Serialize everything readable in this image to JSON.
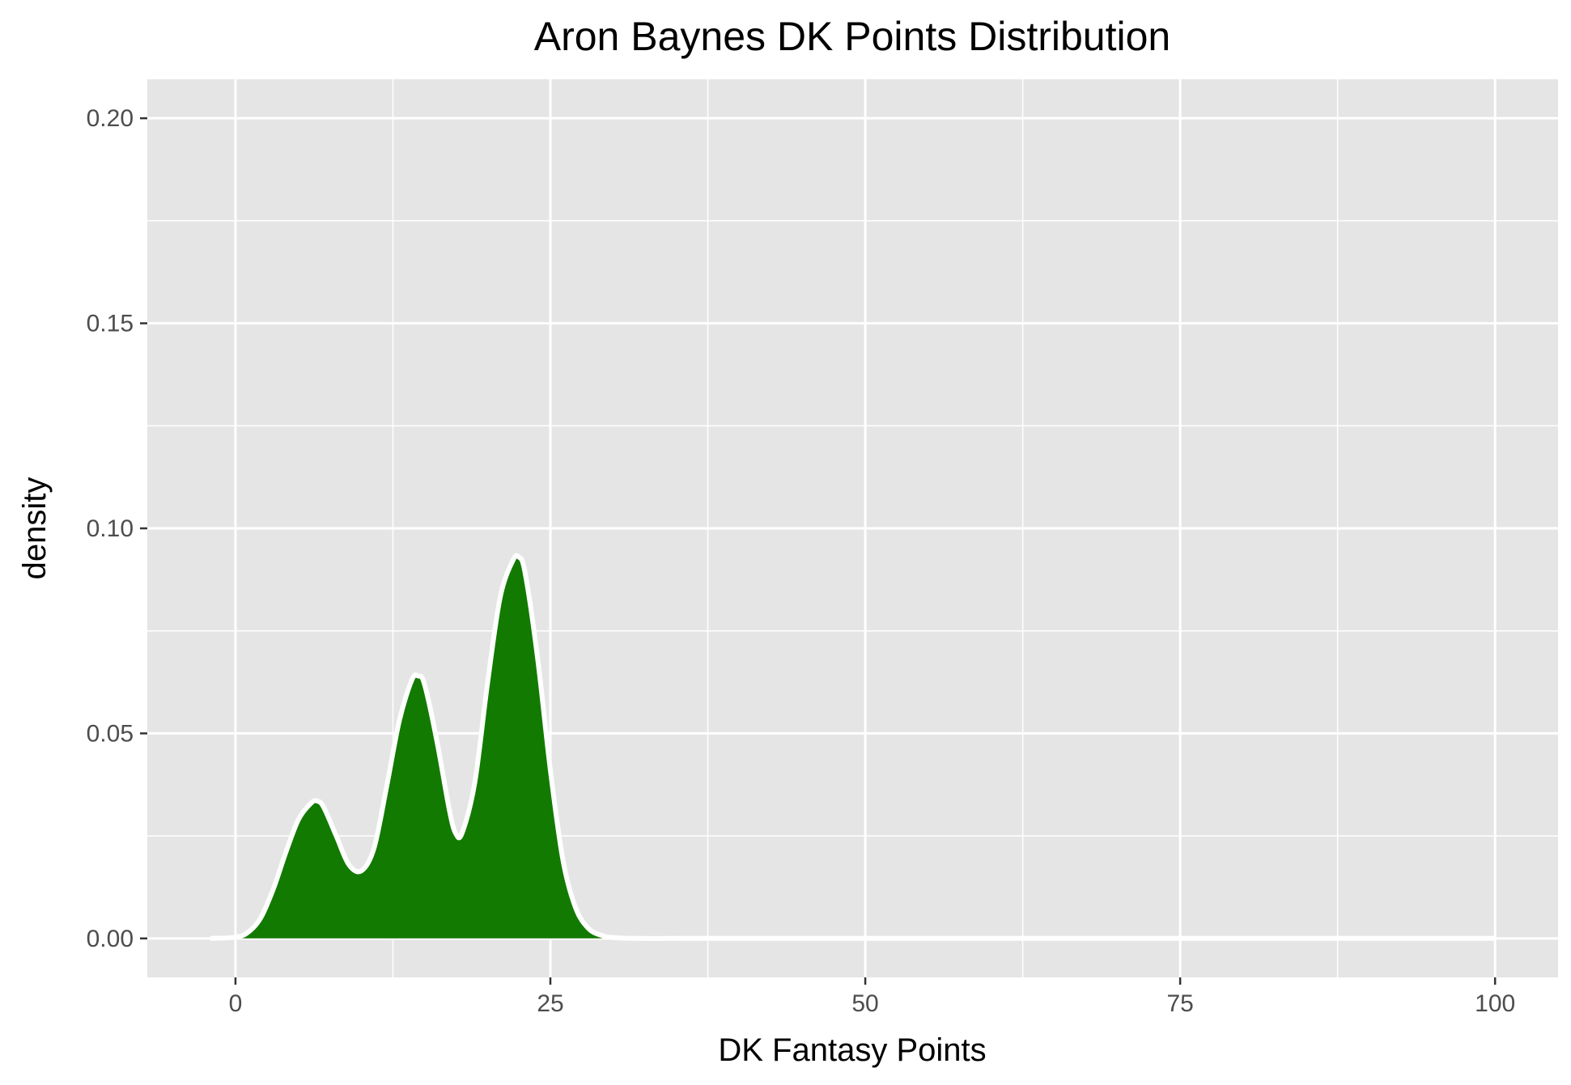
{
  "chart_data": {
    "type": "area",
    "title": "Aron Baynes DK Points Distribution",
    "xlabel": "DK Fantasy Points",
    "ylabel": "density",
    "xlim": [
      -7,
      105
    ],
    "ylim": [
      -0.0095,
      0.2095
    ],
    "x_ticks": [
      0,
      25,
      50,
      75,
      100
    ],
    "x_tick_labels": [
      "0",
      "25",
      "50",
      "75",
      "100"
    ],
    "y_ticks": [
      0,
      0.05,
      0.1,
      0.15,
      0.2
    ],
    "y_tick_labels": [
      "0.00",
      "0.05",
      "0.10",
      "0.15",
      "0.20"
    ],
    "grid": true,
    "legend": "none",
    "series": [
      {
        "x": [
          -2,
          0,
          1,
          2,
          3,
          4,
          5,
          6,
          6.5,
          7,
          8,
          9,
          10,
          11,
          12,
          13,
          14,
          14.5,
          15,
          16,
          17,
          17.5,
          18,
          19,
          20,
          21,
          22,
          22.5,
          23,
          24,
          25,
          26,
          27,
          28,
          29,
          30,
          32,
          35,
          40,
          50,
          60,
          70,
          80,
          90,
          100
        ],
        "y": [
          0,
          0.0003,
          0.0015,
          0.005,
          0.012,
          0.021,
          0.029,
          0.033,
          0.0335,
          0.032,
          0.025,
          0.018,
          0.0165,
          0.022,
          0.037,
          0.053,
          0.063,
          0.064,
          0.062,
          0.048,
          0.031,
          0.0255,
          0.0258,
          0.038,
          0.062,
          0.083,
          0.092,
          0.093,
          0.089,
          0.068,
          0.041,
          0.019,
          0.0075,
          0.0025,
          0.0008,
          0.0002,
          0,
          0,
          0,
          0,
          0,
          0,
          0,
          0,
          0
        ]
      }
    ],
    "colors": {
      "fill": "#127a00",
      "outline": "#ffffff",
      "panel_background": "#e5e5e5",
      "grid": "#ffffff",
      "tick_text": "#4d4d4d",
      "axis_ticks": "#333333"
    }
  }
}
